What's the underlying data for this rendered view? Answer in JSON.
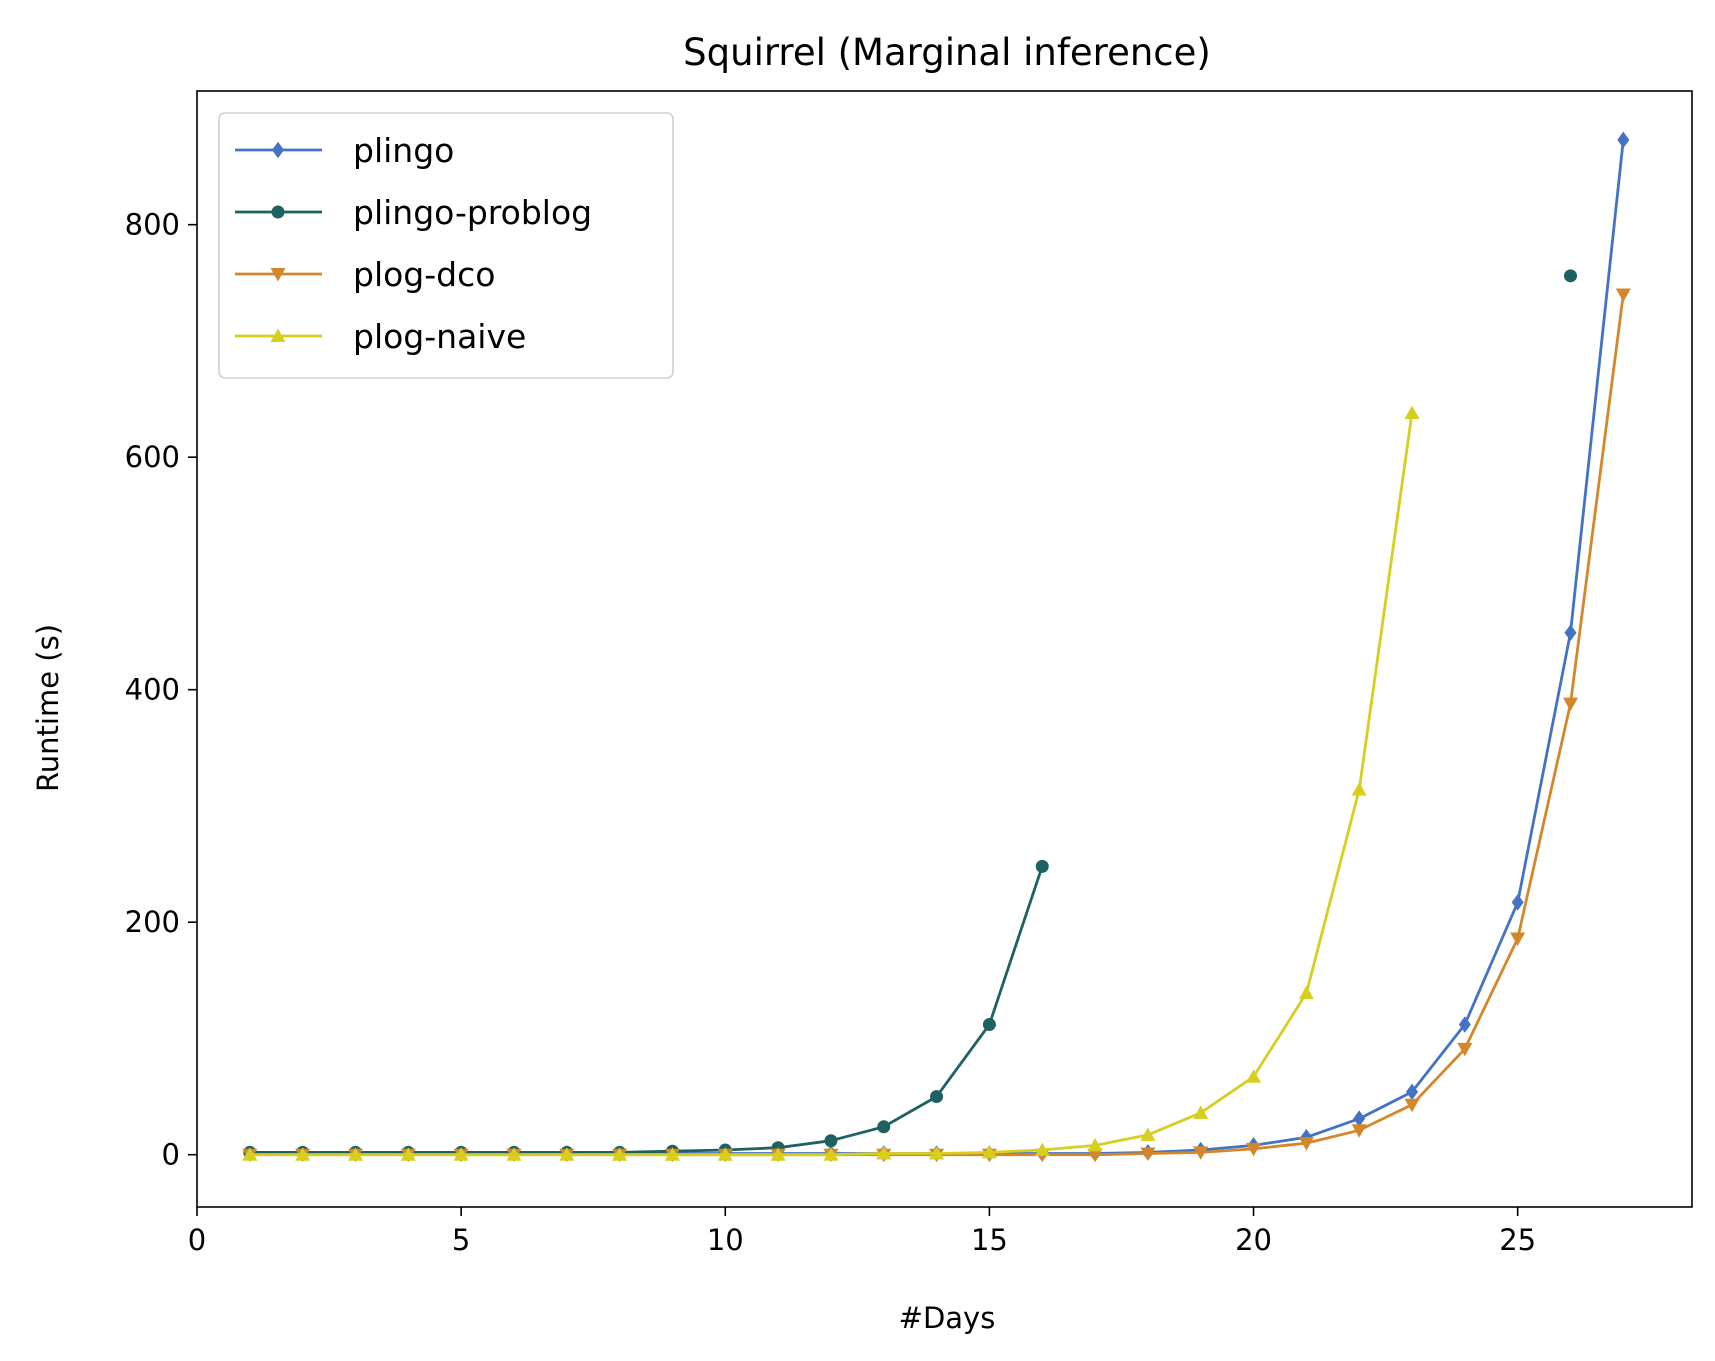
{
  "chart_data": {
    "type": "line",
    "title": "Squirrel (Marginal inference)",
    "xlabel": "#Days",
    "ylabel": "Runtime (s)",
    "xlim": [
      0,
      28.3
    ],
    "ylim": [
      -45,
      915
    ],
    "xticks": [
      0,
      5,
      10,
      15,
      20,
      25
    ],
    "yticks": [
      0,
      200,
      400,
      600,
      800
    ],
    "grid": false,
    "legend_position": "top-left",
    "series": [
      {
        "name": "plingo",
        "color": "#4472c4",
        "marker": "diamond",
        "x": [
          1,
          2,
          3,
          4,
          5,
          6,
          7,
          8,
          9,
          10,
          11,
          12,
          13,
          14,
          15,
          16,
          17,
          18,
          19,
          20,
          21,
          22,
          23,
          24,
          25,
          26,
          27
        ],
        "y": [
          1,
          1,
          1,
          1,
          1,
          1,
          1,
          1,
          1,
          1,
          1,
          1,
          1,
          1,
          1,
          1,
          1,
          2,
          4,
          8,
          15,
          31,
          54,
          112,
          217,
          449,
          873
        ]
      },
      {
        "name": "plingo-problog",
        "color": "#1f6060",
        "marker": "circle",
        "x": [
          1,
          2,
          3,
          4,
          5,
          6,
          7,
          8,
          9,
          10,
          11,
          12,
          13,
          14,
          15,
          16,
          null,
          26
        ],
        "y": [
          2,
          2,
          2,
          2,
          2,
          2,
          2,
          2,
          3,
          4,
          6,
          12,
          24,
          50,
          112,
          248,
          null,
          756
        ]
      },
      {
        "name": "plog-dco",
        "color": "#d4862a",
        "marker": "triangle-down",
        "x": [
          1,
          2,
          3,
          4,
          5,
          6,
          7,
          8,
          9,
          10,
          11,
          12,
          13,
          14,
          15,
          16,
          17,
          18,
          19,
          20,
          21,
          22,
          23,
          24,
          25,
          26,
          27
        ],
        "y": [
          0,
          0,
          0,
          0,
          0,
          0,
          0,
          0,
          0,
          0,
          0,
          0,
          0,
          0,
          0,
          0,
          0,
          1,
          2,
          5,
          10,
          21,
          43,
          91,
          186,
          388,
          740
        ]
      },
      {
        "name": "plog-naive",
        "color": "#d6cf1e",
        "marker": "triangle-up",
        "x": [
          1,
          2,
          3,
          4,
          5,
          6,
          7,
          8,
          9,
          10,
          11,
          12,
          13,
          14,
          15,
          16,
          17,
          18,
          19,
          20,
          21,
          22,
          23
        ],
        "y": [
          0,
          0,
          0,
          0,
          0,
          0,
          0,
          0,
          0,
          0,
          0,
          0,
          1,
          1,
          2,
          4,
          8,
          17,
          36,
          67,
          139,
          314,
          638
        ]
      }
    ]
  }
}
